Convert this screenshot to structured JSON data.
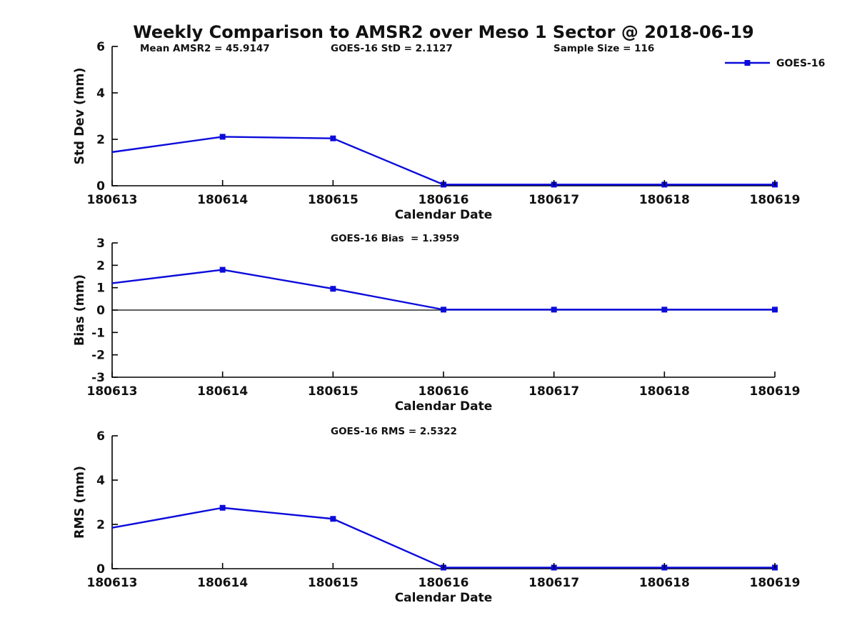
{
  "page": {
    "title": "Weekly Comparison to AMSR2 over Meso 1 Sector @ 2018-06-19"
  },
  "colors": {
    "line": "#0b0bdb",
    "axis": "#000000",
    "text": "#111111",
    "background": "#ffffff"
  },
  "legend": {
    "label": "GOES-16",
    "position": "top-right"
  },
  "chart_data": [
    {
      "type": "line",
      "panel": "std-dev",
      "ylabel": "Std Dev (mm)",
      "xlabel": "Calendar Date",
      "x": [
        "180613",
        "180614",
        "180615",
        "180616",
        "180617",
        "180618",
        "180619"
      ],
      "series": [
        {
          "name": "GOES-16",
          "values": [
            1.45,
            2.11,
            2.04,
            0.05,
            0.05,
            0.05,
            0.05
          ]
        }
      ],
      "ylim": [
        0,
        6
      ],
      "yticks": [
        0,
        2,
        4,
        6
      ],
      "grid": false,
      "annotations": [
        "Mean AMSR2 = 45.9147",
        "GOES-16 StD = 2.1127",
        "Sample Size = 116"
      ],
      "show_legend": true
    },
    {
      "type": "line",
      "panel": "bias",
      "ylabel": "Bias (mm)",
      "xlabel": "Calendar Date",
      "x": [
        "180613",
        "180614",
        "180615",
        "180616",
        "180617",
        "180618",
        "180619"
      ],
      "series": [
        {
          "name": "GOES-16",
          "values": [
            1.2,
            1.8,
            0.95,
            0.02,
            0.02,
            0.02,
            0.02
          ]
        }
      ],
      "ylim": [
        -3,
        3
      ],
      "yticks": [
        -3,
        -2,
        -1,
        0,
        1,
        2,
        3
      ],
      "zero_line": true,
      "grid": false,
      "annotations": [
        "GOES-16 Bias  = 1.3959"
      ],
      "show_legend": false
    },
    {
      "type": "line",
      "panel": "rms",
      "ylabel": "RMS (mm)",
      "xlabel": "Calendar Date",
      "x": [
        "180613",
        "180614",
        "180615",
        "180616",
        "180617",
        "180618",
        "180619"
      ],
      "series": [
        {
          "name": "GOES-16",
          "values": [
            1.85,
            2.75,
            2.25,
            0.05,
            0.05,
            0.05,
            0.05
          ]
        }
      ],
      "ylim": [
        0,
        6
      ],
      "yticks": [
        0,
        2,
        4,
        6
      ],
      "grid": false,
      "annotations": [
        "GOES-16 RMS = 2.5322"
      ],
      "show_legend": false
    }
  ]
}
